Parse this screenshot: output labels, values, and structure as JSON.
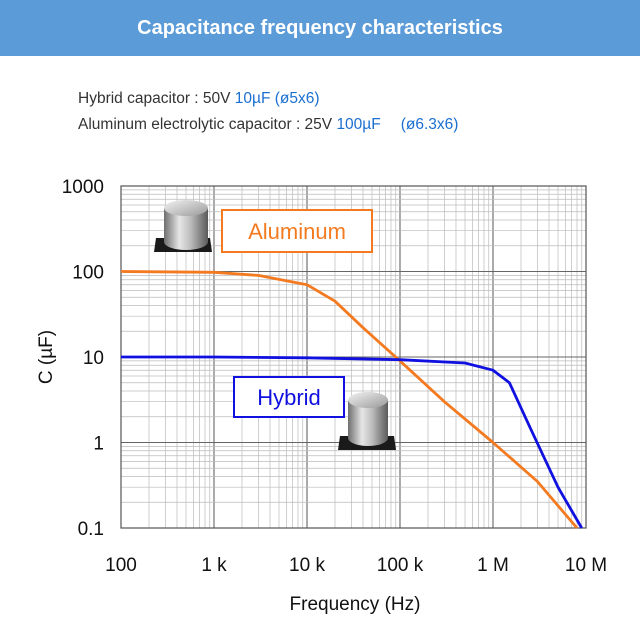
{
  "header": {
    "title": "Capacitance frequency characteristics"
  },
  "specs": {
    "hybrid": {
      "prefix": "Hybrid capacitor : 50V ",
      "cap": "10µF",
      "size": "(ø5x6)"
    },
    "aluminum": {
      "prefix": "Aluminum electrolytic capacitor : 25V ",
      "cap": "100µF",
      "size": "(ø6.3x6)"
    }
  },
  "colors": {
    "header_bg": "#5b9bd8",
    "aluminum": "#f47a20",
    "hybrid": "#1010e0",
    "spec_accent": "#1a6fd1"
  },
  "chart_data": {
    "type": "line",
    "xlabel": "Frequency (Hz)",
    "ylabel": "C (µF)",
    "x_scale": "log",
    "y_scale": "log",
    "xlim": [
      100,
      10000000
    ],
    "ylim": [
      0.1,
      1000
    ],
    "x_ticks": [
      {
        "value": 100,
        "label": "100"
      },
      {
        "value": 1000,
        "label": "1 k"
      },
      {
        "value": 10000,
        "label": "10 k"
      },
      {
        "value": 100000,
        "label": "100 k"
      },
      {
        "value": 1000000,
        "label": "1 M"
      },
      {
        "value": 10000000,
        "label": "10 M"
      }
    ],
    "y_ticks": [
      {
        "value": 0.1,
        "label": "0.1"
      },
      {
        "value": 1,
        "label": "1"
      },
      {
        "value": 10,
        "label": "10"
      },
      {
        "value": 100,
        "label": "100"
      },
      {
        "value": 1000,
        "label": "1000"
      }
    ],
    "grid": true,
    "series": [
      {
        "name": "Aluminum",
        "color": "#f47a20",
        "points": [
          [
            100,
            100
          ],
          [
            1000,
            98
          ],
          [
            3000,
            90
          ],
          [
            10000,
            70
          ],
          [
            20000,
            45
          ],
          [
            40000,
            22
          ],
          [
            100000,
            9
          ],
          [
            300000,
            3
          ],
          [
            1000000,
            1
          ],
          [
            3000000,
            0.35
          ],
          [
            8000000,
            0.1
          ]
        ]
      },
      {
        "name": "Hybrid",
        "color": "#1010e0",
        "points": [
          [
            100,
            10
          ],
          [
            1000,
            10
          ],
          [
            10000,
            9.8
          ],
          [
            100000,
            9.3
          ],
          [
            500000,
            8.5
          ],
          [
            1000000,
            7
          ],
          [
            1500000,
            5
          ],
          [
            2500000,
            1.5
          ],
          [
            5000000,
            0.3
          ],
          [
            9000000,
            0.1
          ]
        ]
      }
    ]
  }
}
